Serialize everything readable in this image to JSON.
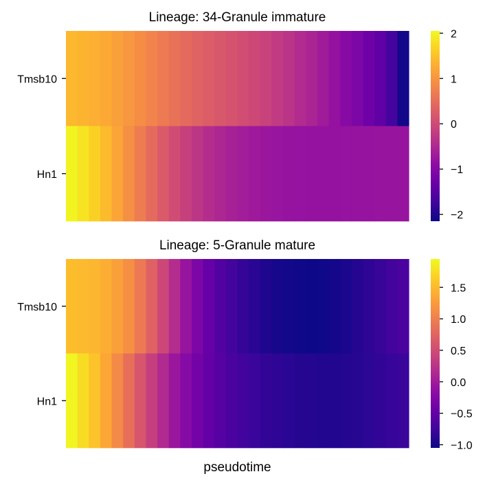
{
  "chart_data": [
    {
      "type": "heatmap",
      "title": "Lineage: 34-Granule immature",
      "rows": [
        "Tmsb10",
        "Hn1"
      ],
      "xlabel": "",
      "colormap": "plasma",
      "vmin": -2.15,
      "vmax": 2.05,
      "colorbar_ticks": [
        2,
        1,
        0,
        -1,
        -2
      ],
      "colorbar_tick_labels": [
        "2",
        "1",
        "0",
        "−1",
        "−2"
      ],
      "values": [
        [
          1.4,
          1.36,
          1.3,
          1.23,
          1.13,
          1.02,
          0.9,
          0.78,
          0.66,
          0.55,
          0.45,
          0.35,
          0.27,
          0.19,
          0.12,
          0.04,
          -0.03,
          -0.12,
          -0.22,
          -0.33,
          -0.45,
          -0.55,
          -0.68,
          -0.82,
          -0.98,
          -1.1,
          -1.25,
          -1.42,
          -1.68,
          -2.1
        ],
        [
          2.0,
          1.84,
          1.65,
          1.42,
          1.18,
          0.93,
          0.68,
          0.45,
          0.22,
          0.02,
          -0.15,
          -0.3,
          -0.42,
          -0.52,
          -0.6,
          -0.66,
          -0.71,
          -0.75,
          -0.78,
          -0.8,
          -0.81,
          -0.82,
          -0.82,
          -0.82,
          -0.81,
          -0.8,
          -0.8,
          -0.79,
          -0.79,
          -0.79
        ]
      ]
    },
    {
      "type": "heatmap",
      "title": "Lineage: 5-Granule mature",
      "rows": [
        "Tmsb10",
        "Hn1"
      ],
      "xlabel": "pseudotime",
      "colormap": "plasma",
      "vmin": -1.05,
      "vmax": 1.95,
      "colorbar_ticks": [
        1.5,
        1.0,
        0.5,
        0.0,
        -0.5,
        -1.0
      ],
      "colorbar_tick_labels": [
        "1.5",
        "1.0",
        "0.5",
        "0.0",
        "−0.5",
        "−1.0"
      ],
      "values": [
        [
          1.52,
          1.5,
          1.47,
          1.4,
          1.3,
          1.15,
          0.95,
          0.72,
          0.45,
          0.18,
          -0.08,
          -0.3,
          -0.48,
          -0.62,
          -0.73,
          -0.82,
          -0.89,
          -0.95,
          -0.99,
          -1.02,
          -1.04,
          -1.05,
          -1.04,
          -1.01,
          -0.97,
          -0.92,
          -0.86,
          -0.8,
          -0.74,
          -0.68
        ],
        [
          1.92,
          1.75,
          1.57,
          1.35,
          1.1,
          0.85,
          0.6,
          0.37,
          0.15,
          -0.05,
          -0.22,
          -0.38,
          -0.5,
          -0.6,
          -0.68,
          -0.74,
          -0.79,
          -0.83,
          -0.86,
          -0.89,
          -0.91,
          -0.92,
          -0.93,
          -0.93,
          -0.92,
          -0.9,
          -0.87,
          -0.84,
          -0.81,
          -0.79
        ]
      ]
    }
  ]
}
